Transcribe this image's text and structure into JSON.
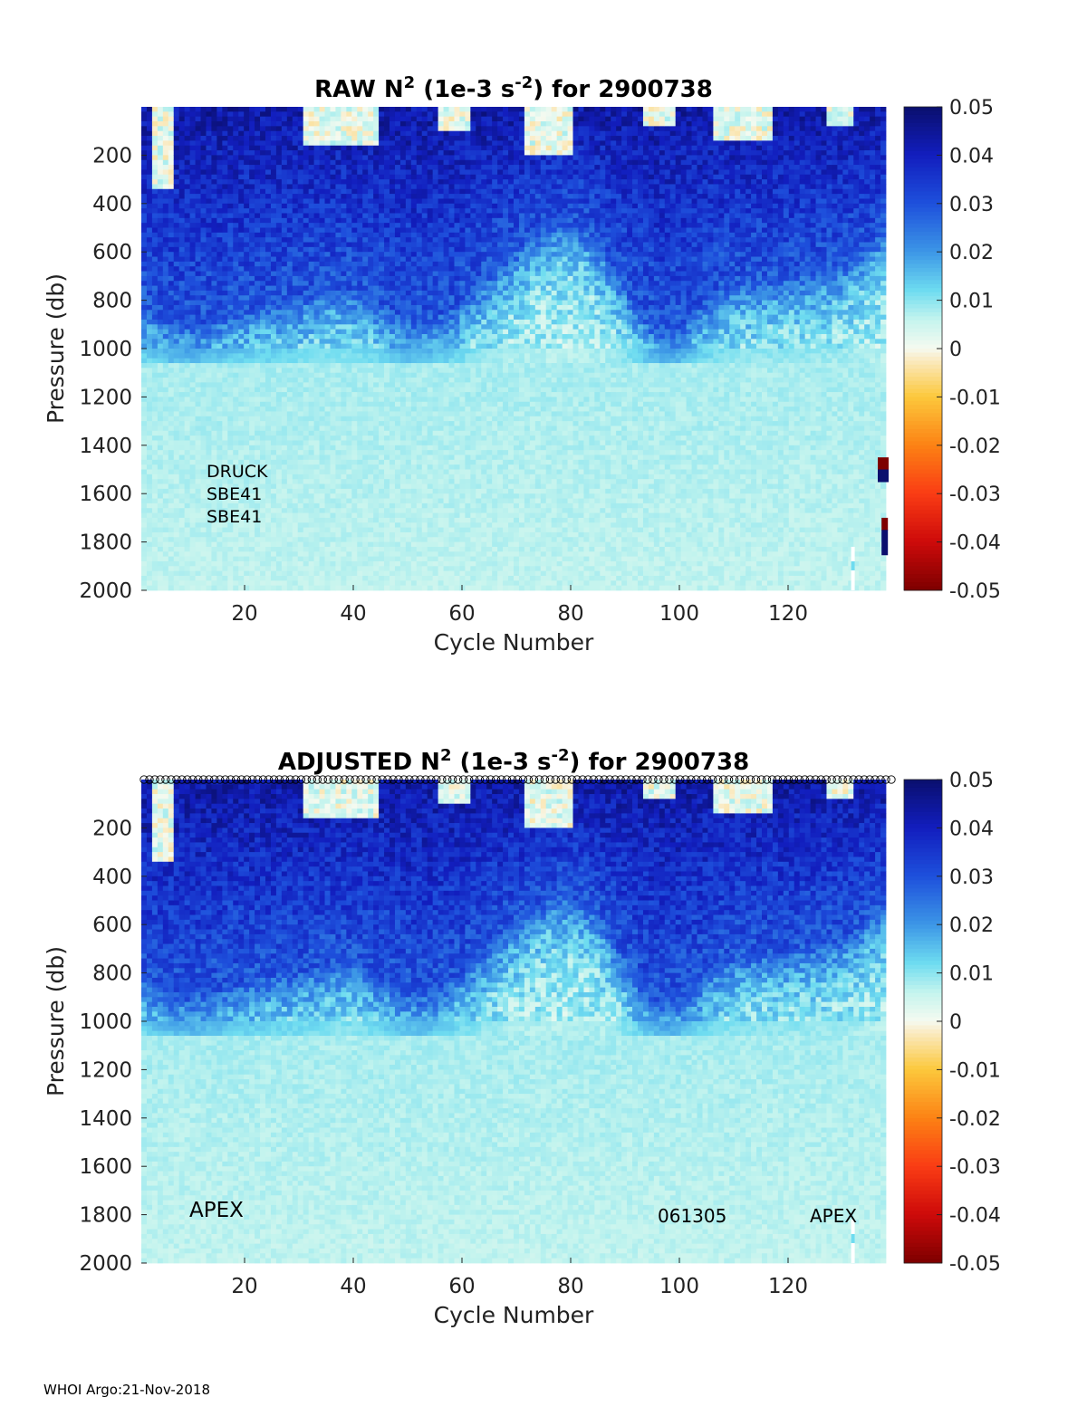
{
  "footer": "WHOI Argo:21-Nov-2018",
  "chart_data": [
    {
      "type": "heatmap",
      "title_prefix": "RAW N",
      "title_sup1": "2",
      "title_mid": " (1e-3 s",
      "title_sup2": "-2",
      "title_suffix": ") for 2900738",
      "xlabel": "Cycle Number",
      "ylabel": "Pressure (db)",
      "xlim": [
        1,
        138
      ],
      "ylim": [
        2000,
        0
      ],
      "xticks": [
        "20",
        "40",
        "60",
        "80",
        "100",
        "120"
      ],
      "yticks": [
        "200",
        "400",
        "600",
        "800",
        "1000",
        "1200",
        "1400",
        "1600",
        "1800",
        "2000"
      ],
      "colorbar": {
        "range": [
          -0.05,
          0.05
        ],
        "ticks": [
          "0.05",
          "0.04",
          "0.03",
          "0.02",
          "0.01",
          "0",
          "-0.01",
          "-0.02",
          "-0.03",
          "-0.04",
          "-0.05"
        ]
      },
      "annotations": [
        "DRUCK",
        "SBE41",
        "SBE41"
      ],
      "top_markers": false
    },
    {
      "type": "heatmap",
      "title_prefix": "ADJUSTED N",
      "title_sup1": "2",
      "title_mid": " (1e-3 s",
      "title_sup2": "-2",
      "title_suffix": ") for 2900738",
      "xlabel": "Cycle Number",
      "ylabel": "Pressure (db)",
      "xlim": [
        1,
        138
      ],
      "ylim": [
        2000,
        0
      ],
      "xticks": [
        "20",
        "40",
        "60",
        "80",
        "100",
        "120"
      ],
      "yticks": [
        "200",
        "400",
        "600",
        "800",
        "1000",
        "1200",
        "1400",
        "1600",
        "1800",
        "2000"
      ],
      "colorbar": {
        "range": [
          -0.05,
          0.05
        ],
        "ticks": [
          "0.05",
          "0.04",
          "0.03",
          "0.02",
          "0.01",
          "0",
          "-0.01",
          "-0.02",
          "-0.03",
          "-0.04",
          "-0.05"
        ]
      },
      "annotations": [
        "APEX",
        "061305",
        "APEX"
      ],
      "top_markers": true
    }
  ]
}
